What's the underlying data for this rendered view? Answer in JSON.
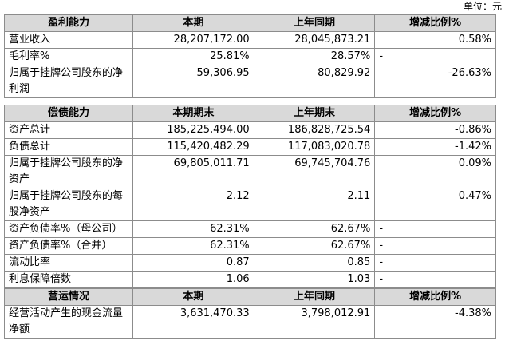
{
  "unit": "单位：元",
  "sections": [
    {
      "header": [
        "盈利能力",
        "本期",
        "上年同期",
        "增减比例%"
      ],
      "rows": [
        [
          "营业收入",
          "28,207,172.00",
          "28,045,873.21",
          "0.58%"
        ],
        [
          "毛利率%",
          "25.81%",
          "28.57%",
          "-"
        ],
        [
          "归属于挂牌公司股东的净利润",
          "59,306.95",
          "80,829.92",
          "-26.63%"
        ]
      ]
    },
    {
      "header": [
        "偿债能力",
        "本期期末",
        "上年期末",
        "增减比例%"
      ],
      "rows": [
        [
          "资产总计",
          "185,225,494.00",
          "186,828,725.54",
          "-0.86%"
        ],
        [
          "负债总计",
          "115,420,482.29",
          "117,083,020.78",
          "-1.42%"
        ],
        [
          "归属于挂牌公司股东的净资产",
          "69,805,011.71",
          "69,745,704.76",
          "0.09%"
        ],
        [
          "归属于挂牌公司股东的每股净资产",
          "2.12",
          "2.11",
          "0.47%"
        ],
        [
          "资产负债率%（母公司）",
          "62.31%",
          "62.67%",
          "-"
        ],
        [
          "资产负债率%（合并）",
          "62.31%",
          "62.67%",
          "-"
        ],
        [
          "流动比率",
          "0.87",
          "0.85",
          "-"
        ],
        [
          "利息保障倍数",
          "1.06",
          "1.03",
          "-"
        ]
      ]
    },
    {
      "header": [
        "营运情况",
        "本期",
        "上年同期",
        "增减比例%"
      ],
      "rows": [
        [
          "经营活动产生的现金流量净额",
          "3,631,470.33",
          "3,798,012.91",
          "-4.38%"
        ]
      ]
    }
  ]
}
